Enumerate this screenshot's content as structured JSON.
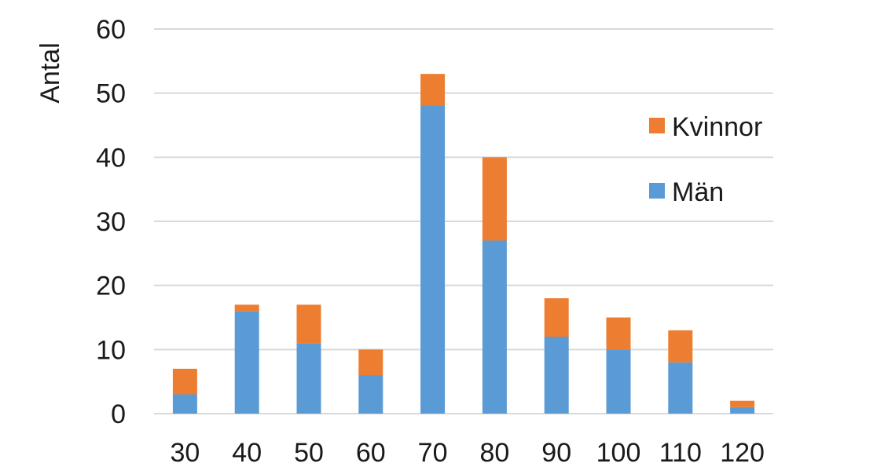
{
  "chart_data": {
    "type": "bar",
    "stacked": true,
    "title": "",
    "xlabel": "",
    "ylabel": "Antal",
    "ylim": [
      0,
      60
    ],
    "yticks": [
      0,
      10,
      20,
      30,
      40,
      50,
      60
    ],
    "grid": true,
    "legend_position": "right",
    "categories": [
      "30",
      "40",
      "50",
      "60",
      "70",
      "80",
      "90",
      "100",
      "110",
      "120"
    ],
    "series": [
      {
        "name": "Män",
        "color": "#5B9BD5",
        "values": [
          3,
          16,
          11,
          6,
          48,
          27,
          12,
          10,
          8,
          1
        ]
      },
      {
        "name": "Kvinnor",
        "color": "#ED7D31",
        "values": [
          4,
          1,
          6,
          4,
          5,
          13,
          6,
          5,
          5,
          1
        ]
      }
    ],
    "legend_order": [
      "Kvinnor",
      "Män"
    ]
  }
}
